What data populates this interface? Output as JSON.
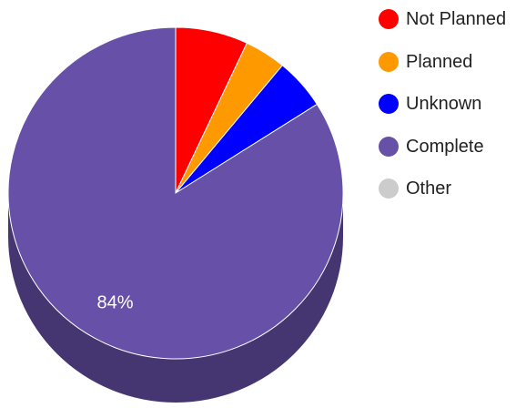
{
  "chart_data": {
    "type": "pie",
    "title": "",
    "style": "3d",
    "slices": [
      {
        "label": "Not Planned",
        "value": 7,
        "color": "#ff0000"
      },
      {
        "label": "Planned",
        "value": 4,
        "color": "#ff9900"
      },
      {
        "label": "Unknown",
        "value": 5,
        "color": "#0000ff"
      },
      {
        "label": "Complete",
        "value": 84,
        "color": "#6650a8",
        "data_label": "84%"
      },
      {
        "label": "Other",
        "value": 0,
        "color": "#cccccc"
      }
    ],
    "legend_placement": "right"
  }
}
